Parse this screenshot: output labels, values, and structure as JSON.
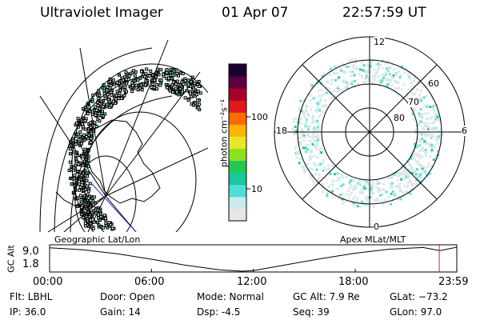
{
  "header": {
    "instrument": "Ultraviolet Imager",
    "date": "01 Apr 07",
    "time": "22:57:59 UT"
  },
  "colorbar": {
    "unit_label": "photon cm⁻²s⁻¹",
    "ticks": [
      "100",
      "10"
    ],
    "scale": "log",
    "colors": [
      "#e6e6e6",
      "#c8ecec",
      "#4ee0d6",
      "#18c8a0",
      "#22c850",
      "#8de220",
      "#e6e62a",
      "#ffb400",
      "#ff6a00",
      "#e01a1a",
      "#a8002a",
      "#5c0040",
      "#1a0030"
    ]
  },
  "left_panel": {
    "label": "Geographic Lat/Lon",
    "projection": "geographic"
  },
  "right_panel": {
    "label": "Apex MLat/MLT",
    "mlt_labels": {
      "top": "12",
      "left": "18",
      "right": "6",
      "bottom": "0"
    },
    "lat_labels": [
      "60",
      "70",
      "80"
    ]
  },
  "altitude_plot": {
    "ylabel": "GC Alt",
    "y_ticks": [
      "9.0",
      "1.8"
    ],
    "x_ticks": [
      "00:00",
      "06:00",
      "12:00",
      "18:00",
      "23:59"
    ],
    "current_marker_color": "#cc2222"
  },
  "chart_data": {
    "type": "line",
    "title": "",
    "ylabel": "GC Alt",
    "xlabel": "",
    "x": [
      "00:00",
      "02:00",
      "04:00",
      "06:00",
      "08:00",
      "10:00",
      "11:20",
      "12:00",
      "14:00",
      "16:00",
      "18:00",
      "20:00",
      "22:00",
      "23:00",
      "23:59"
    ],
    "values": [
      8.8,
      8.2,
      7.0,
      5.4,
      3.6,
      2.2,
      1.8,
      2.0,
      3.8,
      5.6,
      7.2,
      8.4,
      8.9,
      8.0,
      9.0
    ],
    "ylim": [
      1.8,
      9.0
    ],
    "current_time": "22:57:59"
  },
  "info": {
    "flt": "Flt: LBHL",
    "ip": "IP: 36.0",
    "door": "Door: Open",
    "gain": "Gain: 14",
    "mode": "Mode: Normal",
    "dsp": "Dsp:    -4.5",
    "gc_alt": "GC Alt: 7.9 Re",
    "seq": "Seq: 39",
    "glat": "GLat: −73.2",
    "glon": "GLon:  97.0"
  }
}
